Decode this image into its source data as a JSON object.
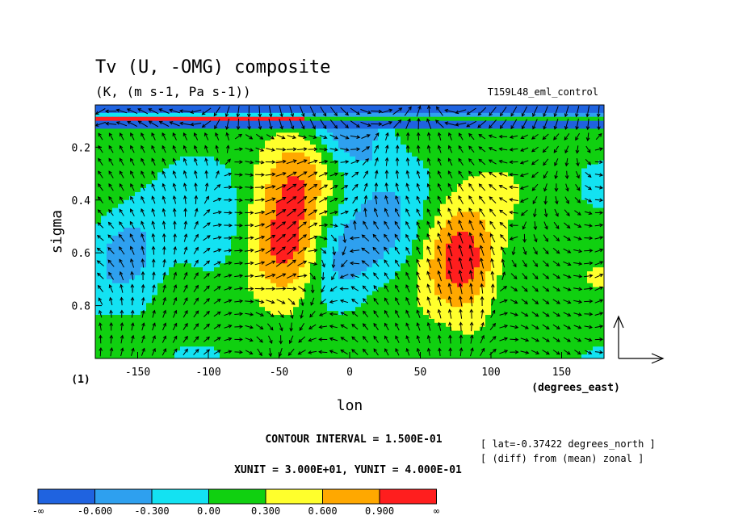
{
  "chart_data": {
    "type": "heatmap",
    "title": "Tv (U, -OMG) composite",
    "subtitle": "(K, (m s-1, Pa s-1))",
    "experiment": "T159L48_eml_control",
    "xlabel": "lon",
    "x_units": "(degrees_east)",
    "ylabel": "sigma",
    "scale_factor": "(1)",
    "xlim": [
      -180,
      180
    ],
    "ylim": [
      1.0,
      0.04
    ],
    "x_ticks": [
      -150,
      -100,
      -50,
      0,
      50,
      100,
      150
    ],
    "y_ticks": [
      0.2,
      0.4,
      0.6,
      0.8
    ],
    "contour_interval_text": "CONTOUR INTERVAL = 1.500E-01",
    "vector_unit_text": "XUNIT = 3.000E+01, YUNIT = 4.000E-01",
    "notes": [
      "[ lat=-0.37422 degrees_north ]",
      "[ (diff) from (mean) zonal ]"
    ],
    "levels": [
      -0.6,
      -0.3,
      0.0,
      0.3,
      0.6,
      0.9
    ],
    "colorbar": {
      "labels": [
        "-∞",
        "-0.600",
        "-0.300",
        "0.00",
        "0.300",
        "0.600",
        "0.900",
        "∞"
      ],
      "colors": [
        "#1f63e0",
        "#2ea0ef",
        "#13e2f2",
        "#10d010",
        "#ffff2c",
        "#ffa800",
        "#ff1e1e"
      ]
    },
    "features": [
      {
        "lon": -155,
        "sigma": 0.58,
        "anomaly": -0.5
      },
      {
        "lon": -100,
        "sigma": 0.55,
        "anomaly": -0.4
      },
      {
        "lon": -45,
        "sigma": 0.6,
        "anomaly": 1.0
      },
      {
        "lon": -35,
        "sigma": 0.3,
        "anomaly": 0.55
      },
      {
        "lon": -5,
        "sigma": 0.6,
        "anomaly": -0.55
      },
      {
        "lon": 30,
        "sigma": 0.55,
        "anomaly": -0.45
      },
      {
        "lon": 80,
        "sigma": 0.63,
        "anomaly": 1.05
      },
      {
        "lon": 150,
        "sigma": 0.6,
        "anomaly": 0.05
      },
      {
        "lon": 20,
        "sigma": 0.93,
        "anomaly": 0.1
      },
      {
        "lon": 0,
        "sigma": 0.09,
        "anomaly": -0.8
      }
    ]
  }
}
